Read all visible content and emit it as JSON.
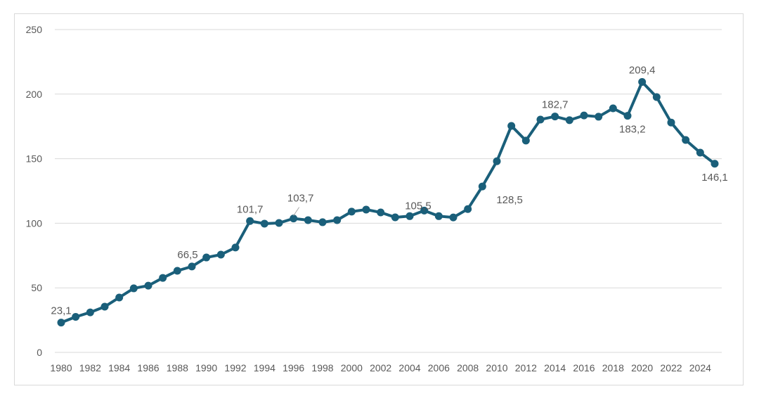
{
  "chart_data": {
    "type": "line",
    "title": "",
    "xlabel": "",
    "ylabel": "",
    "ylim": [
      0,
      250
    ],
    "yticks": [
      "0",
      "50",
      "100",
      "150",
      "200",
      "250"
    ],
    "ytick_values": [
      0,
      50,
      100,
      150,
      200,
      250
    ],
    "grid": true,
    "legend": "none",
    "line_color": "#1a5f7a",
    "x": [
      1980,
      1981,
      1982,
      1983,
      1984,
      1985,
      1986,
      1987,
      1988,
      1989,
      1990,
      1991,
      1992,
      1993,
      1994,
      1995,
      1996,
      1997,
      1998,
      1999,
      2000,
      2001,
      2002,
      2003,
      2004,
      2005,
      2006,
      2007,
      2008,
      2009,
      2010,
      2011,
      2012,
      2013,
      2014,
      2015,
      2016,
      2017,
      2018,
      2019,
      2020,
      2021,
      2022,
      2023,
      2024,
      2025
    ],
    "xtick_labels": [
      "1980",
      "1982",
      "1984",
      "1986",
      "1988",
      "1990",
      "1992",
      "1994",
      "1996",
      "1998",
      "2000",
      "2002",
      "2004",
      "2006",
      "2008",
      "2010",
      "2012",
      "2014",
      "2016",
      "2018",
      "2020",
      "2022",
      "2024"
    ],
    "series": [
      {
        "name": "",
        "values": [
          23.1,
          27.5,
          31,
          35.4,
          42.5,
          49.6,
          51.7,
          57.7,
          63.2,
          66.5,
          73.5,
          75.7,
          81.2,
          101.7,
          99.7,
          100.2,
          103.7,
          102.4,
          100.8,
          102.4,
          109,
          110.6,
          108.4,
          104.6,
          105.5,
          109.8,
          105.5,
          104.5,
          111,
          128.5,
          148,
          175.4,
          164,
          180.3,
          182.7,
          179.8,
          183.5,
          182.5,
          189,
          183.2,
          209.4,
          197.7,
          178,
          164.5,
          154.7,
          146.1
        ]
      }
    ],
    "data_labels": [
      {
        "year": 1980,
        "text": "23,1",
        "pos": "above"
      },
      {
        "year": 1989,
        "text": "66,5",
        "pos": "above-left"
      },
      {
        "year": 1993,
        "text": "101,7",
        "pos": "above"
      },
      {
        "year": 1996,
        "text": "103,7",
        "pos": "leader-above"
      },
      {
        "year": 2004,
        "text": "105,5",
        "pos": "above-right"
      },
      {
        "year": 2009,
        "text": "128,5",
        "pos": "below-right"
      },
      {
        "year": 2014,
        "text": "182,7",
        "pos": "above"
      },
      {
        "year": 2020,
        "text": "209,4",
        "pos": "above"
      },
      {
        "year": 2019,
        "text": "183,2",
        "pos": "below-right"
      },
      {
        "year": 2025,
        "text": "146,1",
        "pos": "below"
      }
    ]
  }
}
